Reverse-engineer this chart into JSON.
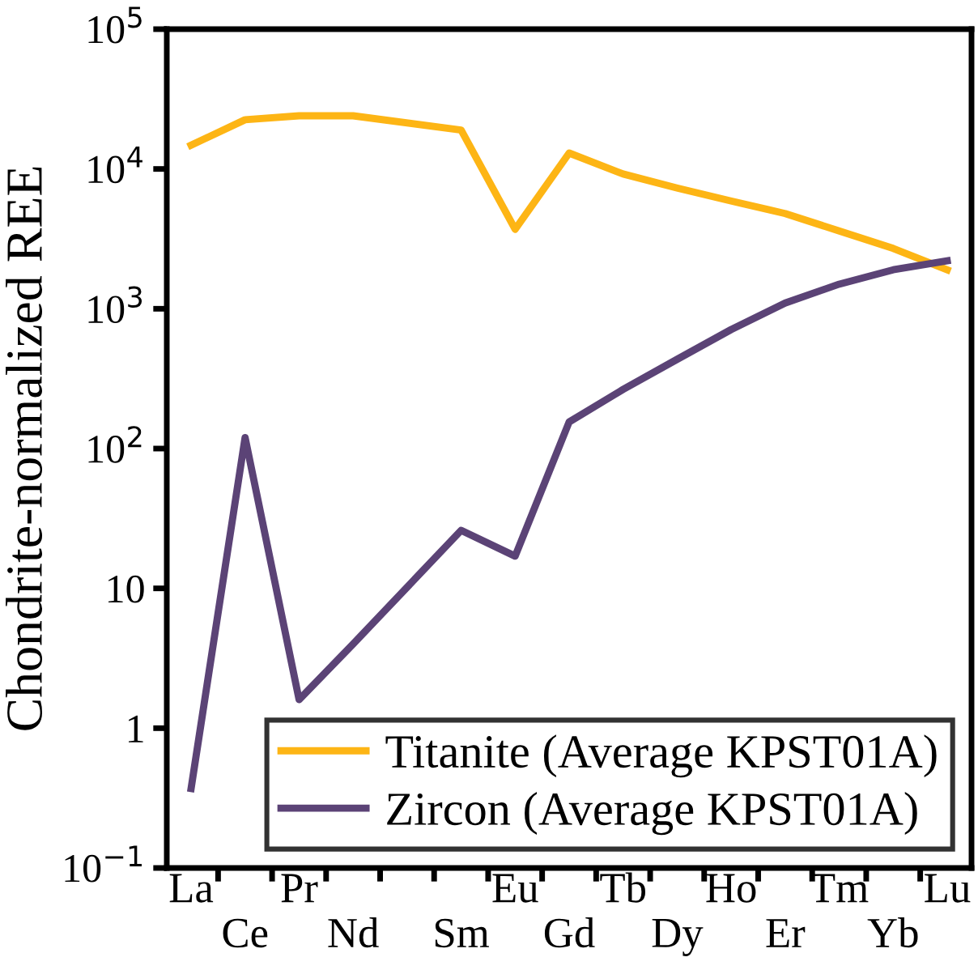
{
  "chart_data": {
    "type": "line",
    "ylabel": "Chondrite-normalized REE",
    "categories": [
      "La",
      "Ce",
      "Pr",
      "Nd",
      null,
      "Sm",
      "Eu",
      "Gd",
      "Tb",
      "Dy",
      "Ho",
      "Er",
      "Tm",
      "Yb",
      "Lu"
    ],
    "series": [
      {
        "name": "Titanite (Average KPST01A)",
        "color": "#fdb515",
        "values": [
          14800,
          22500,
          24000,
          24000,
          null,
          19000,
          3700,
          13000,
          9200,
          7300,
          5900,
          4800,
          3600,
          2700,
          1900
        ]
      },
      {
        "name": "Zircon (Average KPST01A)",
        "color": "#5b4376",
        "values": [
          0.37,
          120,
          1.6,
          4,
          null,
          26,
          17,
          155,
          265,
          435,
          710,
          1100,
          1500,
          1900,
          2200
        ]
      }
    ],
    "log": "y",
    "ylim": [
      0.1,
      100000
    ],
    "yticks": [
      {
        "value": 0.1,
        "label": "10$^{−1}$"
      },
      1,
      10,
      {
        "value": 100,
        "label": "10$^{2}$"
      },
      {
        "value": 1000,
        "label": "10$^{3}$"
      },
      {
        "value": 10000,
        "label": "10$^{4}$"
      },
      {
        "value": 100000,
        "label": "10$^{5}$"
      }
    ],
    "grid": false,
    "legend": "bottom right",
    "marker": "none",
    "line_style": "solid"
  }
}
